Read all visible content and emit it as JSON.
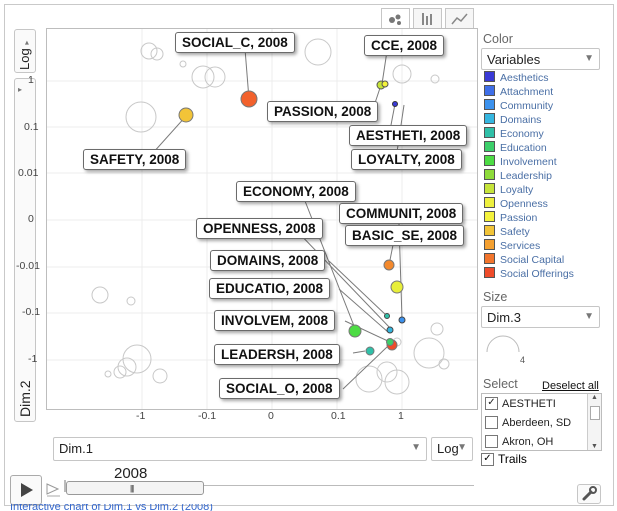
{
  "chart_type_buttons": [
    "bubble-chart-icon",
    "bar-chart-icon",
    "line-chart-icon"
  ],
  "y_axis": {
    "title": "Dim.2",
    "scale": "Log",
    "ticks": [
      "1",
      "0.1",
      "0.01",
      "0",
      "-0.01",
      "-0.1",
      "-1"
    ]
  },
  "x_axis": {
    "title": "Dim.1",
    "scale": "Log",
    "ticks": [
      "-1",
      "-0.1",
      "0",
      "0.1",
      "1"
    ]
  },
  "labels": [
    "SOCIAL_C, 2008",
    "CCE, 2008",
    "PASSION, 2008",
    "AESTHETI, 2008",
    "LOYALTY, 2008",
    "SAFETY, 2008",
    "ECONOMY, 2008",
    "COMMUNIT, 2008",
    "OPENNESS, 2008",
    "BASIC_SE, 2008",
    "DOMAINS, 2008",
    "EDUCATIO, 2008",
    "INVOLVEM, 2008",
    "LEADERSH, 2008",
    "SOCIAL_O, 2008"
  ],
  "color_panel": {
    "title": "Color",
    "selected": "Variables",
    "legend": [
      {
        "name": "Aesthetics",
        "color": "#3a3ad6"
      },
      {
        "name": "Attachment",
        "color": "#3f6fe8"
      },
      {
        "name": "Community",
        "color": "#3c92ee"
      },
      {
        "name": "Domains",
        "color": "#35b6e0"
      },
      {
        "name": "Economy",
        "color": "#30c0a8"
      },
      {
        "name": "Education",
        "color": "#3ccf6a"
      },
      {
        "name": "Involvement",
        "color": "#4ddc44"
      },
      {
        "name": "Leadership",
        "color": "#8edb3a"
      },
      {
        "name": "Loyalty",
        "color": "#c6e43a"
      },
      {
        "name": "Openness",
        "color": "#eef03e"
      },
      {
        "name": "Passion",
        "color": "#f4f23c"
      },
      {
        "name": "Safety",
        "color": "#f2c438"
      },
      {
        "name": "Services",
        "color": "#f4a030"
      },
      {
        "name": "Social Capital",
        "color": "#f2752c"
      },
      {
        "name": "Social Offerings",
        "color": "#ef4c2a"
      }
    ]
  },
  "size_panel": {
    "title": "Size",
    "selected": "Dim.3",
    "value": "4"
  },
  "select_panel": {
    "title": "Select",
    "deselect_all": "Deselect all",
    "items": [
      {
        "label": "AESTHETI",
        "checked": true
      },
      {
        "label": "Aberdeen, SD",
        "checked": false
      },
      {
        "label": "Akron, OH",
        "checked": false
      }
    ]
  },
  "trails": {
    "label": "Trails",
    "checked": true
  },
  "timeline": {
    "year": "2008"
  },
  "footer_text": "Interactive chart of Dim.1 vs Dim.2 (2008)"
}
